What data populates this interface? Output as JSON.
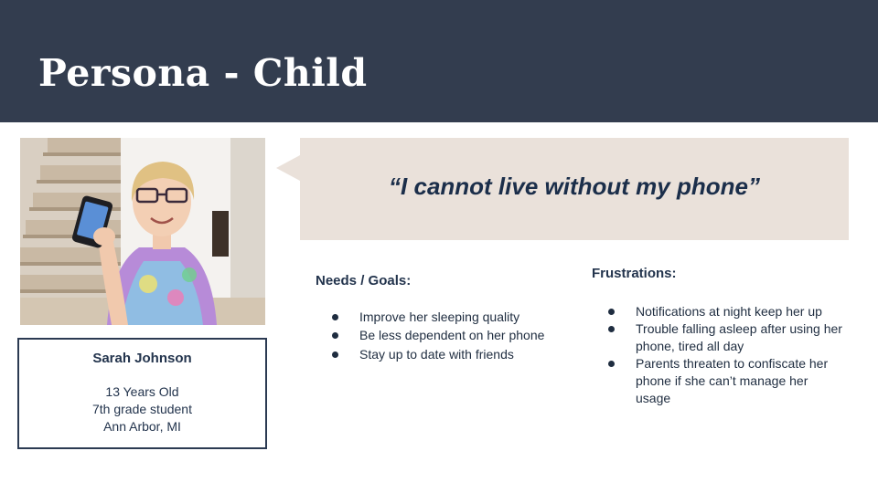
{
  "slide": {
    "title": "Persona - Child"
  },
  "quote": {
    "text": "“I cannot live without my phone”"
  },
  "profile": {
    "photo_icon": "persona-photo",
    "name": "Sarah Johnson",
    "age": "13 Years Old",
    "grade": "7th grade student",
    "location": "Ann Arbor, MI"
  },
  "needs": {
    "heading": "Needs / Goals:",
    "items": [
      "Improve her sleeping quality",
      "Be less dependent on her phone",
      "Stay up to date with friends"
    ]
  },
  "frustrations": {
    "heading": "Frustrations:",
    "items": [
      "Notifications at night keep her up",
      "Trouble falling asleep after using her phone, tired all day",
      "Parents threaten to confiscate her phone if she can’t manage her usage"
    ]
  },
  "colors": {
    "header_bg": "#333d4f",
    "quote_bg": "#eae1da",
    "text_dark": "#23344d"
  }
}
